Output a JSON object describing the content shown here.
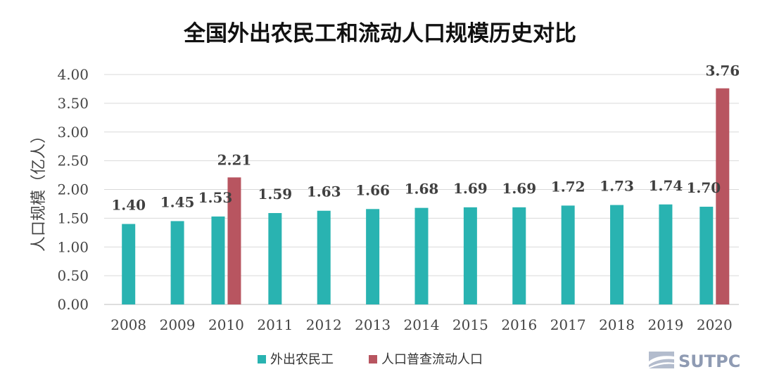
{
  "chart_data": {
    "type": "bar",
    "title": "全国外出农民工和流动人口规模历史对比",
    "xlabel": "",
    "ylabel": "人口规模（亿人）",
    "ylim": [
      0,
      4
    ],
    "yticks": [
      "0.00",
      "0.50",
      "1.00",
      "1.50",
      "2.00",
      "2.50",
      "3.00",
      "3.50",
      "4.00"
    ],
    "categories": [
      "2008",
      "2009",
      "2010",
      "2011",
      "2012",
      "2013",
      "2014",
      "2015",
      "2016",
      "2017",
      "2018",
      "2019",
      "2020"
    ],
    "grid": true,
    "legend_position": "bottom-center",
    "series": [
      {
        "name": "外出农民工",
        "color": "#29b3b1",
        "values": [
          1.4,
          1.45,
          1.53,
          1.59,
          1.63,
          1.66,
          1.68,
          1.69,
          1.69,
          1.72,
          1.73,
          1.74,
          1.7
        ],
        "labels": [
          "1.40",
          "1.45",
          "1.53",
          "1.59",
          "1.63",
          "1.66",
          "1.68",
          "1.69",
          "1.69",
          "1.72",
          "1.73",
          "1.74",
          "1.70"
        ]
      },
      {
        "name": "人口普查流动人口",
        "color": "#b85560",
        "values": [
          null,
          null,
          2.21,
          null,
          null,
          null,
          null,
          null,
          null,
          null,
          null,
          null,
          3.76
        ],
        "labels": [
          null,
          null,
          "2.21",
          null,
          null,
          null,
          null,
          null,
          null,
          null,
          null,
          null,
          "3.76"
        ]
      }
    ]
  },
  "brand": {
    "text": "SUTPC",
    "icon": "sutpc-logo-icon",
    "color": "#8f9bb3"
  }
}
